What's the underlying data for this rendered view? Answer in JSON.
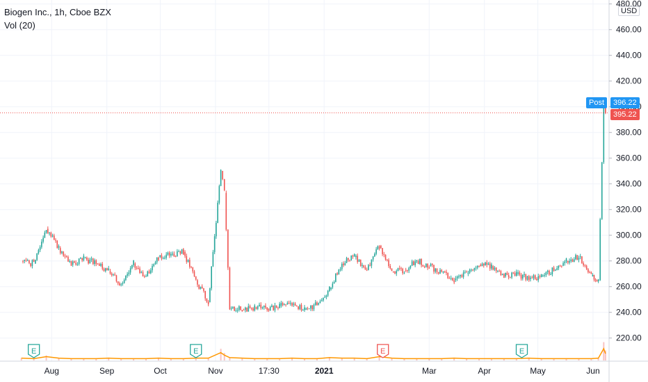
{
  "header": {
    "symbol_title": "Biogen Inc., 1h, Cboe BZX",
    "indicator_label": "Vol (20)"
  },
  "price_scale": {
    "currency": "USD",
    "post_label": "Post",
    "post_price": "396.22",
    "last_price": "395.22"
  },
  "earnings_markers": [
    {
      "label": "E",
      "date": "2020-07-22",
      "status": "past"
    },
    {
      "label": "E",
      "date": "2020-10-21",
      "status": "past"
    },
    {
      "label": "E",
      "date": "2021-02-03",
      "status": "miss"
    },
    {
      "label": "E",
      "date": "2021-04-22",
      "status": "past"
    }
  ],
  "colors": {
    "up": "#26a69a",
    "down": "#ef5350",
    "post": "#2196f3",
    "volume_ma": "#ff9800",
    "grid": "#f0f3fa",
    "text": "#131722"
  },
  "chart_data": {
    "type": "candlestick",
    "title": "Biogen Inc., 1h, Cboe BZX",
    "ylabel": "USD",
    "ylim": [
      202,
      482
    ],
    "y_ticks": [
      "220.00",
      "240.00",
      "260.00",
      "280.00",
      "300.00",
      "320.00",
      "340.00",
      "360.00",
      "380.00",
      "400.00",
      "420.00",
      "440.00",
      "460.00",
      "480.00"
    ],
    "x_ticks": [
      "Aug",
      "Sep",
      "Oct",
      "Nov",
      "17:30",
      "2021",
      "Mar",
      "Apr",
      "May",
      "Jun"
    ],
    "grid": true,
    "series": [
      {
        "name": "Price",
        "values": [
          [
            "2020-07-15",
            280
          ],
          [
            "2020-07-22",
            278
          ],
          [
            "2020-07-29",
            305
          ],
          [
            "2020-08-05",
            290
          ],
          [
            "2020-08-12",
            277
          ],
          [
            "2020-08-19",
            282
          ],
          [
            "2020-08-26",
            278
          ],
          [
            "2020-09-02",
            272
          ],
          [
            "2020-09-09",
            262
          ],
          [
            "2020-09-16",
            278
          ],
          [
            "2020-09-23",
            268
          ],
          [
            "2020-09-30",
            283
          ],
          [
            "2020-10-07",
            285
          ],
          [
            "2020-10-14",
            287
          ],
          [
            "2020-10-21",
            265
          ],
          [
            "2020-10-28",
            248
          ],
          [
            "2020-11-04",
            350
          ],
          [
            "2020-11-06",
            333
          ],
          [
            "2020-11-09",
            243
          ],
          [
            "2020-11-16",
            242
          ],
          [
            "2020-11-23",
            244
          ],
          [
            "2020-11-30",
            243
          ],
          [
            "2020-12-07",
            245
          ],
          [
            "2020-12-14",
            246
          ],
          [
            "2020-12-21",
            242
          ],
          [
            "2020-12-28",
            246
          ],
          [
            "2021-01-04",
            258
          ],
          [
            "2021-01-11",
            278
          ],
          [
            "2021-01-18",
            283
          ],
          [
            "2021-01-25",
            273
          ],
          [
            "2021-02-01",
            292
          ],
          [
            "2021-02-08",
            272
          ],
          [
            "2021-02-15",
            273
          ],
          [
            "2021-02-22",
            280
          ],
          [
            "2021-03-01",
            276
          ],
          [
            "2021-03-08",
            271
          ],
          [
            "2021-03-15",
            265
          ],
          [
            "2021-03-22",
            270
          ],
          [
            "2021-03-29",
            277
          ],
          [
            "2021-04-05",
            276
          ],
          [
            "2021-04-12",
            268
          ],
          [
            "2021-04-19",
            270
          ],
          [
            "2021-04-26",
            266
          ],
          [
            "2021-05-03",
            268
          ],
          [
            "2021-05-10",
            273
          ],
          [
            "2021-05-17",
            280
          ],
          [
            "2021-05-24",
            283
          ],
          [
            "2021-05-31",
            268
          ],
          [
            "2021-06-04",
            265
          ],
          [
            "2021-06-07",
            405
          ],
          [
            "2021-06-08",
            395.22
          ]
        ]
      },
      {
        "name": "Vol (20)",
        "values": [
          3,
          2,
          6,
          3,
          2,
          2,
          2,
          3,
          2,
          2,
          2,
          3,
          2,
          2,
          3,
          3,
          14,
          9,
          4,
          3,
          2,
          2,
          2,
          3,
          2,
          2,
          4,
          3,
          3,
          2,
          6,
          3,
          2,
          2,
          2,
          2,
          3,
          2,
          2,
          2,
          2,
          2,
          3,
          2,
          2,
          2,
          2,
          2,
          3,
          22,
          12
        ]
      }
    ]
  }
}
